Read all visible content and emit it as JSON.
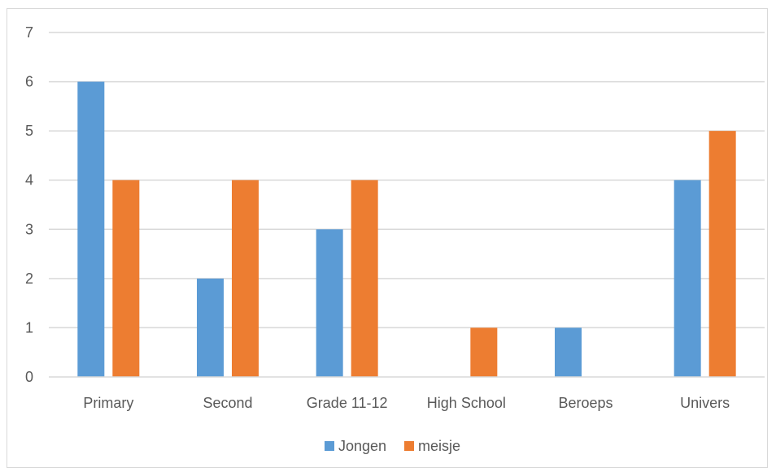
{
  "chart_data": {
    "type": "bar",
    "categories": [
      "Primary",
      "Second",
      "Grade 11-12",
      "High School",
      "Beroeps",
      "Univers"
    ],
    "series": [
      {
        "name": "Jongen",
        "values": [
          6,
          2,
          3,
          0,
          1,
          4
        ],
        "color": "#5b9bd5"
      },
      {
        "name": "meisje",
        "values": [
          4,
          4,
          4,
          1,
          0,
          5
        ],
        "color": "#ed7d31"
      }
    ],
    "ylim": [
      0,
      7
    ],
    "yticks": [
      0,
      1,
      2,
      3,
      4,
      5,
      6,
      7
    ],
    "grid": true,
    "legend": "bottom"
  }
}
